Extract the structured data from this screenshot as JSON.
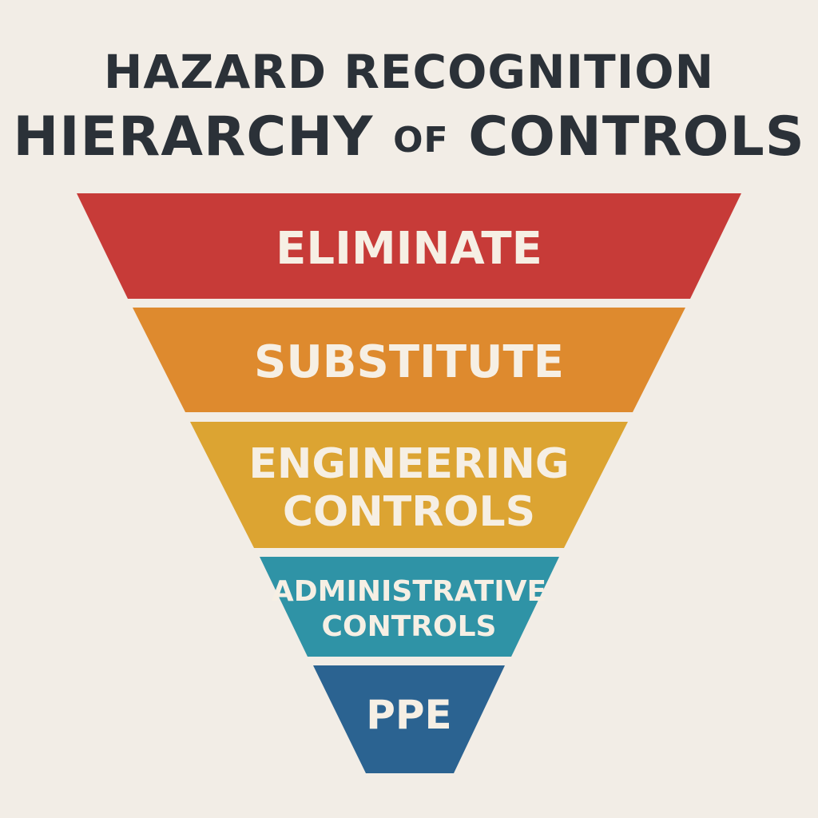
{
  "title": {
    "line1": "HAZARD RECOGNITION",
    "line2_start": "HIERARCHY ",
    "line2_of": "OF",
    "line2_end": " CONTROLS"
  },
  "tiers": [
    {
      "lines": [
        "ELIMINATE"
      ],
      "color": "#c73b38"
    },
    {
      "lines": [
        "SUBSTITUTE"
      ],
      "color": "#de8a2e"
    },
    {
      "lines": [
        "ENGINEERING",
        "CONTROLS"
      ],
      "color": "#dca432"
    },
    {
      "lines": [
        "ADMINISTRATIVE",
        "CONTROLS"
      ],
      "color": "#2f93a6"
    },
    {
      "lines": [
        "PPE"
      ],
      "color": "#2b6391"
    }
  ]
}
